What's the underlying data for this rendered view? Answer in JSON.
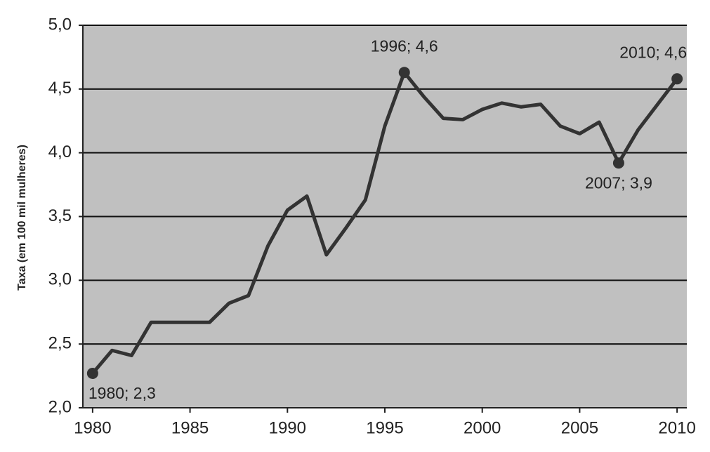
{
  "chart_data": {
    "type": "line",
    "y_label": "Taxa (em 100 mil mulheres)",
    "x": [
      1980,
      1981,
      1982,
      1983,
      1984,
      1985,
      1986,
      1987,
      1988,
      1989,
      1990,
      1991,
      1992,
      1993,
      1994,
      1995,
      1996,
      1997,
      1998,
      1999,
      2000,
      2001,
      2002,
      2003,
      2004,
      2005,
      2006,
      2007,
      2008,
      2009,
      2010
    ],
    "series": [
      {
        "color": "#333333",
        "values": [
          2.27,
          2.45,
          2.41,
          2.67,
          2.67,
          2.67,
          2.67,
          2.82,
          2.88,
          3.27,
          3.55,
          3.66,
          3.2,
          3.41,
          3.63,
          4.21,
          4.63,
          4.44,
          4.27,
          4.26,
          4.34,
          4.39,
          4.36,
          4.38,
          4.21,
          4.15,
          4.24,
          3.92,
          4.18,
          4.38,
          4.58
        ],
        "value_labels": [
          "1980; 2,3",
          null,
          null,
          null,
          null,
          null,
          null,
          null,
          null,
          null,
          null,
          null,
          null,
          null,
          null,
          null,
          "1996; 4,6",
          null,
          null,
          null,
          null,
          null,
          null,
          null,
          null,
          null,
          null,
          "2007; 3,9",
          null,
          null,
          "2010; 4,6"
        ]
      }
    ],
    "xlim": [
      1979.5,
      2010.5
    ],
    "xticks": [
      1980,
      1985,
      1990,
      1995,
      2000,
      2005,
      2010
    ],
    "ylim": [
      2,
      5
    ],
    "yticks": [
      {
        "value": 2,
        "label": "2,0"
      },
      {
        "value": 2.5,
        "label": "2,5"
      },
      {
        "value": 3,
        "label": "3,0"
      },
      {
        "value": 3.5,
        "label": "3,5"
      },
      {
        "value": 4,
        "label": "4,0"
      },
      {
        "value": 4.5,
        "label": "4,5"
      },
      {
        "value": 5,
        "label": "5,0"
      }
    ],
    "grid": true,
    "plot_background": "#c0c0c0"
  }
}
